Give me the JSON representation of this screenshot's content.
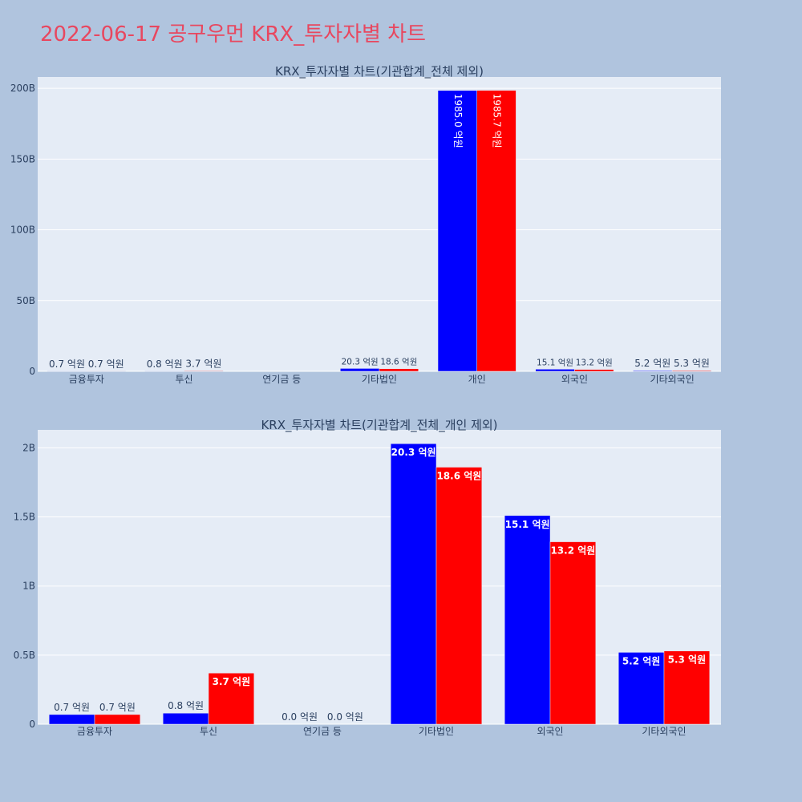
{
  "page": {
    "title": "2022-06-17 공구우먼 KRX_투자자별 차트"
  },
  "colors": {
    "background": "#b0c4de",
    "plot_bg": "#e5ecf6",
    "title": "#e8475f",
    "series_a": "#0000ff",
    "series_b": "#ff0000"
  },
  "chart_data": [
    {
      "type": "bar",
      "title": "KRX_투자자별 차트(기관합계_전체 제외)",
      "categories": [
        "금융투자",
        "투신",
        "연기금 등",
        "기타법인",
        "개인",
        "외국인",
        "기타외국인"
      ],
      "series": [
        {
          "color": "#0000ff",
          "values": [
            0.07,
            0.08,
            0.0,
            2.03,
            198.5,
            1.51,
            0.52
          ],
          "labels": [
            "0.7 억원",
            "0.8 억원",
            "",
            "20.3 억원",
            "1985.0 억원",
            "15.1 억원",
            "5.2 억원"
          ]
        },
        {
          "color": "#ff0000",
          "values": [
            0.07,
            0.37,
            0.0,
            1.86,
            198.57,
            1.32,
            0.53
          ],
          "labels": [
            "0.7 억원",
            "3.7 억원",
            "",
            "18.6 억원",
            "1985.7 억원",
            "13.2 억원",
            "5.3 억원"
          ]
        }
      ],
      "ylim": [
        0,
        208
      ],
      "yticks": [
        0,
        50,
        100,
        150,
        200
      ],
      "ytick_labels": [
        "0",
        "50B",
        "100B",
        "150B",
        "200B"
      ],
      "grid": true
    },
    {
      "type": "bar",
      "title": "KRX_투자자별 차트(기관합계_전체_개인 제외)",
      "categories": [
        "금융투자",
        "투신",
        "연기금 등",
        "기타법인",
        "외국인",
        "기타외국인"
      ],
      "series": [
        {
          "color": "#0000ff",
          "values": [
            0.07,
            0.08,
            0.0,
            2.03,
            1.51,
            0.52
          ],
          "labels": [
            "0.7 억원",
            "0.8 억원",
            "0.0 억원",
            "20.3 억원",
            "15.1 억원",
            "5.2 억원"
          ]
        },
        {
          "color": "#ff0000",
          "values": [
            0.07,
            0.37,
            0.0,
            1.86,
            1.32,
            0.53
          ],
          "labels": [
            "0.7 억원",
            "3.7 억원",
            "0.0 억원",
            "18.6 억원",
            "13.2 억원",
            "5.3 억원"
          ]
        }
      ],
      "ylim": [
        0,
        2.13
      ],
      "yticks": [
        0,
        0.5,
        1,
        1.5,
        2
      ],
      "ytick_labels": [
        "0",
        "0.5B",
        "1B",
        "1.5B",
        "2B"
      ],
      "grid": true
    }
  ]
}
